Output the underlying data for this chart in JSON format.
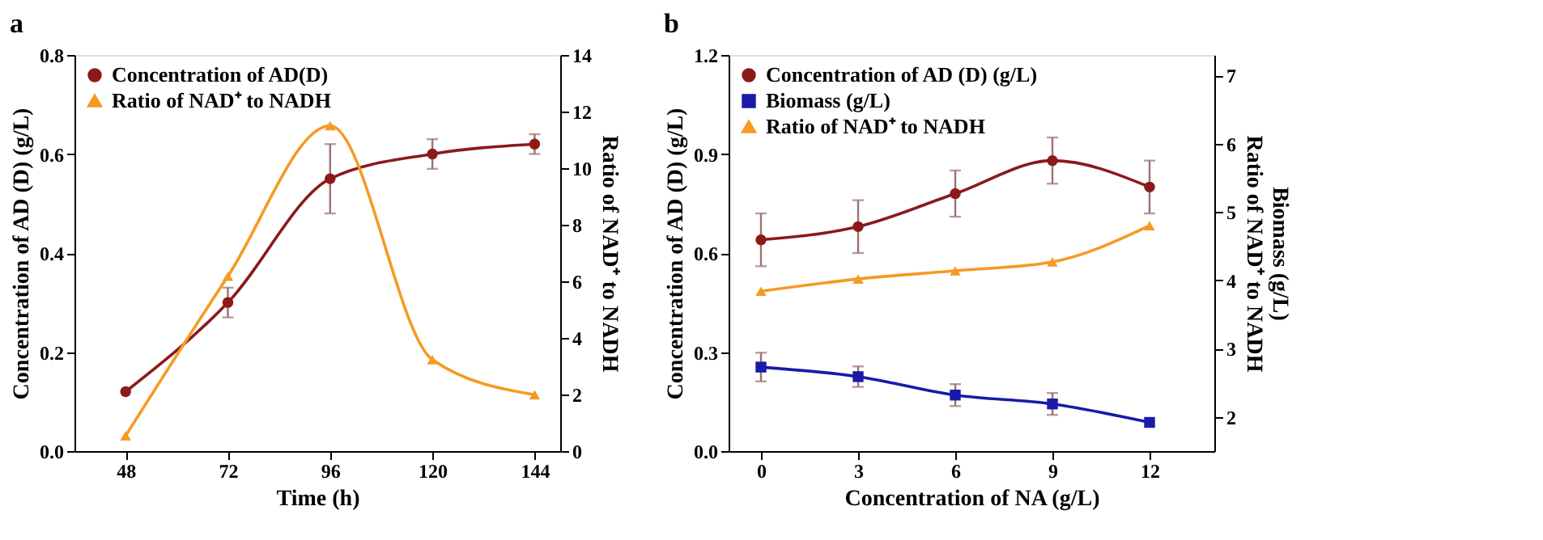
{
  "chart_data": [
    {
      "type": "line",
      "title": "a",
      "xlabel": "Time (h)",
      "ylabel": "Concentration of AD (D) (g/L)",
      "y2label": "Ratio of  NAD⁺ to NADH",
      "x": [
        48,
        72,
        96,
        120,
        144
      ],
      "xlim": [
        36,
        150
      ],
      "xticks": [
        48,
        72,
        96,
        120,
        144
      ],
      "ylim": [
        0,
        0.8
      ],
      "yticks": [
        {
          "value": 0,
          "label": "0.0"
        },
        0.2,
        0.4,
        0.6,
        0.8
      ],
      "y2lim": [
        0,
        14
      ],
      "y2ticks": [
        0,
        2,
        4,
        6,
        8,
        10,
        12,
        14
      ],
      "grid": false,
      "legend": "top left",
      "series": [
        {
          "name": "Concentration of AD(D)",
          "color": "#8b1a1a",
          "marker": "circle",
          "values": [
            0.12,
            0.3,
            0.55,
            0.6,
            0.62
          ],
          "errors": [
            null,
            0.03,
            0.07,
            0.03,
            0.02
          ]
        },
        {
          "name": "Ratio of NAD⁺ to NADH",
          "color": "#f59a23",
          "marker": "triangle",
          "axis": "y2",
          "values": [
            0.54,
            6.18,
            11.5,
            3.23,
            1.99
          ]
        }
      ]
    },
    {
      "type": "line",
      "title": "b",
      "xlabel": "Concentration of NA (g/L)",
      "ylabel": "Concentration of AD (D) (g/L)",
      "y2label": "Biomass (g/L)\nRatio of NAD⁺ to NADH",
      "x": [
        0,
        3,
        6,
        9,
        12
      ],
      "xlim": [
        -1,
        14
      ],
      "xticks": [
        0,
        3,
        6,
        9,
        12
      ],
      "ylim": [
        0,
        1.2
      ],
      "yticks": [
        {
          "value": 0,
          "label": "0.0"
        },
        0.3,
        0.6,
        0.9,
        1.2
      ],
      "y2lim": [
        1.5,
        7.3
      ],
      "y2ticks": [
        2,
        3,
        4,
        5,
        6,
        7
      ],
      "grid": false,
      "legend": "top left",
      "series": [
        {
          "name": "Concentration of AD (D) (g/L)",
          "color": "#8b1a1a",
          "marker": "circle",
          "values": [
            0.64,
            0.68,
            0.78,
            0.88,
            0.8
          ],
          "errors": [
            0.08,
            0.08,
            0.07,
            0.07,
            0.08
          ]
        },
        {
          "name": "Biomass (g/L)",
          "color": "#1a1aa8",
          "marker": "square",
          "axis": "y2",
          "values": [
            2.73,
            2.59,
            2.32,
            2.19,
            1.92
          ],
          "errors": [
            0.21,
            0.15,
            0.16,
            0.16,
            null
          ]
        },
        {
          "name": "Ratio of NAD⁺ to NADH",
          "color": "#f59a23",
          "marker": "triangle",
          "axis": "y2",
          "values": [
            3.84,
            4.02,
            4.14,
            4.27,
            4.8
          ]
        }
      ]
    }
  ]
}
